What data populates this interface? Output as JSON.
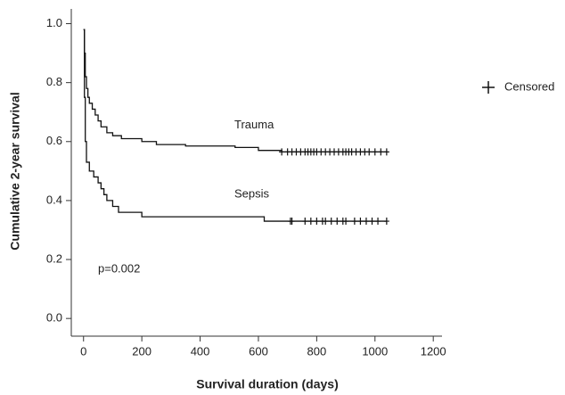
{
  "chart_data": {
    "type": "step",
    "xlabel": "Survival duration (days)",
    "ylabel": "Cumulative 2-year survival",
    "annotation": "p=0.002",
    "censor_legend": "Censored",
    "xlim": [
      -42,
      1230
    ],
    "ylim": [
      -0.06,
      1.05
    ],
    "xticks": [
      0,
      200,
      400,
      600,
      800,
      1000,
      1200
    ],
    "yticks": [
      {
        "value": 0,
        "label": "0.0"
      },
      0.2,
      0.4,
      0.6,
      0.8,
      {
        "value": 1,
        "label": "1.0"
      }
    ],
    "color": "#111111",
    "series": [
      {
        "name": "Trauma",
        "x": [
          0,
          3,
          6,
          10,
          15,
          20,
          30,
          40,
          50,
          60,
          80,
          100,
          130,
          200,
          250,
          350,
          520,
          600,
          680,
          1040
        ],
        "values": [
          0.98,
          0.9,
          0.82,
          0.78,
          0.75,
          0.73,
          0.71,
          0.69,
          0.67,
          0.65,
          0.63,
          0.62,
          0.61,
          0.6,
          0.59,
          0.585,
          0.58,
          0.57,
          0.565,
          0.565
        ],
        "censored_x": [
          680,
          700,
          715,
          730,
          745,
          760,
          770,
          780,
          790,
          800,
          815,
          830,
          845,
          860,
          875,
          890,
          900,
          910,
          920,
          935,
          950,
          965,
          980,
          1000,
          1020,
          1040
        ],
        "censored_y": [
          0.565,
          0.565,
          0.565,
          0.565,
          0.565,
          0.565,
          0.565,
          0.565,
          0.565,
          0.565,
          0.565,
          0.565,
          0.565,
          0.565,
          0.565,
          0.565,
          0.565,
          0.565,
          0.565,
          0.565,
          0.565,
          0.565,
          0.565,
          0.565,
          0.565,
          0.565
        ]
      },
      {
        "name": "Sepsis",
        "x": [
          0,
          3,
          6,
          10,
          20,
          35,
          50,
          60,
          70,
          80,
          100,
          120,
          200,
          620,
          1040
        ],
        "values": [
          0.98,
          0.75,
          0.6,
          0.53,
          0.5,
          0.48,
          0.46,
          0.44,
          0.42,
          0.4,
          0.38,
          0.36,
          0.345,
          0.33,
          0.33
        ],
        "censored_x": [
          710,
          715,
          760,
          780,
          800,
          820,
          830,
          850,
          870,
          890,
          900,
          930,
          950,
          970,
          990,
          1010,
          1040
        ],
        "censored_y": [
          0.33,
          0.33,
          0.33,
          0.33,
          0.33,
          0.33,
          0.33,
          0.33,
          0.33,
          0.33,
          0.33,
          0.33,
          0.33,
          0.33,
          0.33,
          0.33,
          0.33
        ]
      }
    ]
  }
}
